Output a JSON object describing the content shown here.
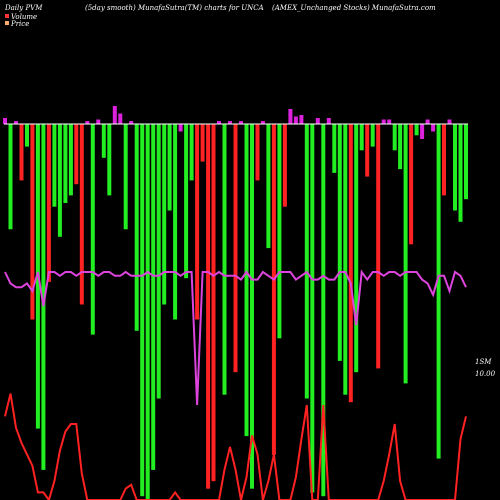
{
  "header": {
    "left": "Daily PVM",
    "middle": "(5day smooth) MunafaSutra(TM) charts for UNCA",
    "right": "(AMEX_Unchanged Stocks) MunafaSutra.com"
  },
  "legend": [
    {
      "label": "Volume",
      "color": "#ff3333"
    },
    {
      "label": "Price",
      "color": "#ffaa66"
    }
  ],
  "annotations": {
    "upper": "1SM",
    "lower": "10.00"
  },
  "colors": {
    "background": "#000000",
    "axis": "#ffffff",
    "bar_up": "#22ee22",
    "bar_down": "#ff2222",
    "bar_flat": "#dd22dd",
    "pvm_line": "#dd44dd",
    "price_line": "#ff2222"
  },
  "chart_data": {
    "type": "bar",
    "title": "(5day smooth) MunafaSutra(TM) charts for UNCA",
    "ylim": [
      -1,
      0.12
    ],
    "bars": {
      "values": [
        0.04,
        -0.28,
        0.02,
        -0.15,
        -0.06,
        -0.52,
        -0.81,
        -0.92,
        -0.42,
        -0.22,
        -0.3,
        -0.21,
        -0.19,
        -0.16,
        -0.48,
        0.02,
        -0.56,
        0.03,
        -0.09,
        -0.19,
        0.12,
        0.07,
        -0.28,
        0.02,
        -0.55,
        -0.99,
        -1.0,
        -0.92,
        -0.73,
        -0.48,
        -0.23,
        -0.52,
        -0.02,
        -0.41,
        -0.15,
        -0.52,
        -0.1,
        -0.97,
        -0.95,
        0.02,
        -0.72,
        0.02,
        -0.66,
        0.02,
        -0.83,
        -0.97,
        -0.15,
        0.02,
        -0.33,
        -0.88,
        -0.57,
        -0.22,
        0.1,
        0.05,
        0.06,
        -0.73,
        -0.98,
        0.04,
        -0.99,
        0.04,
        -0.13,
        -0.63,
        -0.72,
        -0.74,
        -0.66,
        -0.07,
        -0.14,
        -0.06,
        -0.65,
        0.03,
        0.03,
        -0.07,
        -0.12,
        -0.69,
        -0.32,
        -0.03,
        -0.04,
        0.03,
        -0.02,
        -0.89,
        -0.19,
        0.03,
        -0.23,
        -0.26,
        -0.2
      ],
      "colors": [
        "m",
        "g",
        "m",
        "r",
        "g",
        "r",
        "g",
        "g",
        "r",
        "g",
        "g",
        "g",
        "g",
        "r",
        "r",
        "m",
        "g",
        "m",
        "g",
        "g",
        "m",
        "m",
        "g",
        "m",
        "g",
        "g",
        "g",
        "g",
        "g",
        "g",
        "g",
        "g",
        "m",
        "g",
        "g",
        "r",
        "r",
        "r",
        "r",
        "m",
        "g",
        "m",
        "r",
        "m",
        "g",
        "g",
        "r",
        "m",
        "g",
        "r",
        "g",
        "r",
        "m",
        "m",
        "m",
        "g",
        "g",
        "m",
        "g",
        "m",
        "g",
        "g",
        "g",
        "r",
        "g",
        "g",
        "r",
        "g",
        "r",
        "m",
        "m",
        "g",
        "g",
        "g",
        "r",
        "g",
        "m",
        "m",
        "m",
        "g",
        "r",
        "m",
        "g",
        "g",
        "g"
      ]
    },
    "pvm_line": [
      0.6,
      0.57,
      0.56,
      0.56,
      0.57,
      0.55,
      0.6,
      0.51,
      0.6,
      0.6,
      0.59,
      0.6,
      0.6,
      0.59,
      0.6,
      0.6,
      0.6,
      0.59,
      0.6,
      0.6,
      0.59,
      0.59,
      0.6,
      0.59,
      0.59,
      0.59,
      0.6,
      0.59,
      0.59,
      0.6,
      0.6,
      0.6,
      0.59,
      0.6,
      0.6,
      0.25,
      0.6,
      0.6,
      0.59,
      0.6,
      0.59,
      0.59,
      0.59,
      0.58,
      0.6,
      0.58,
      0.58,
      0.6,
      0.59,
      0.58,
      0.6,
      0.6,
      0.6,
      0.58,
      0.59,
      0.6,
      0.58,
      0.58,
      0.59,
      0.58,
      0.58,
      0.6,
      0.6,
      0.57,
      0.46,
      0.6,
      0.58,
      0.6,
      0.6,
      0.59,
      0.6,
      0.6,
      0.59,
      0.6,
      0.6,
      0.6,
      0.58,
      0.57,
      0.54,
      0.59,
      0.59,
      0.55,
      0.6,
      0.59,
      0.56
    ],
    "price_line": [
      0.22,
      0.28,
      0.19,
      0.15,
      0.12,
      0.09,
      0.02,
      0.02,
      0.0,
      0.05,
      0.13,
      0.18,
      0.2,
      0.2,
      0.07,
      0.0,
      0.0,
      0.0,
      0.0,
      0.0,
      0.0,
      0.0,
      0.03,
      0.04,
      0.0,
      0.0,
      0.0,
      0.0,
      0.0,
      0.0,
      0.0,
      0.02,
      0.0,
      0.0,
      0.0,
      0.0,
      0.0,
      0.0,
      0.0,
      0.0,
      0.08,
      0.14,
      0.08,
      0.0,
      0.06,
      0.17,
      0.12,
      0.0,
      0.05,
      0.12,
      0.0,
      0.0,
      0.0,
      0.06,
      0.16,
      0.25,
      0.0,
      0.0,
      0.25,
      0.0,
      0.0,
      0.0,
      0.0,
      0.0,
      0.0,
      0.0,
      0.0,
      0.0,
      0.0,
      0.05,
      0.12,
      0.2,
      0.05,
      0.0,
      0.0,
      0.0,
      0.0,
      0.0,
      0.0,
      0.0,
      0.0,
      0.0,
      0.0,
      0.16,
      0.22
    ]
  }
}
